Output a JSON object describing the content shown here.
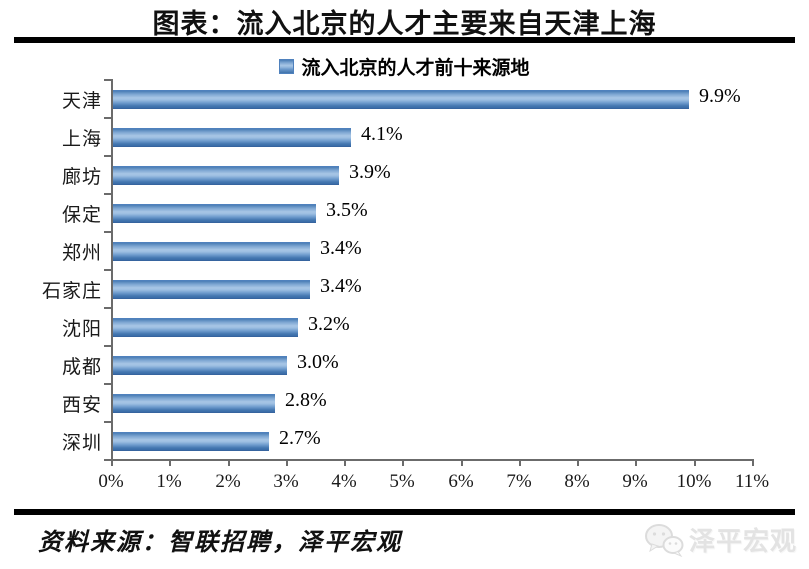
{
  "header": {
    "title": "图表：流入北京的人才主要来自天津上海"
  },
  "chart_data": {
    "type": "bar",
    "orientation": "horizontal",
    "title": "图表：流入北京的人才主要来自天津上海",
    "legend": "流入北京的人才前十来源地",
    "legend_position": "top",
    "categories": [
      "天津",
      "上海",
      "廊坊",
      "保定",
      "郑州",
      "石家庄",
      "沈阳",
      "成都",
      "西安",
      "深圳"
    ],
    "values": [
      9.9,
      4.1,
      3.9,
      3.5,
      3.4,
      3.4,
      3.2,
      3.0,
      2.8,
      2.7
    ],
    "value_labels": [
      "9.9%",
      "4.1%",
      "3.9%",
      "3.5%",
      "3.4%",
      "3.4%",
      "3.2%",
      "3.0%",
      "2.8%",
      "2.7%"
    ],
    "x_ticks": [
      "0%",
      "1%",
      "2%",
      "3%",
      "4%",
      "5%",
      "6%",
      "7%",
      "8%",
      "9%",
      "10%",
      "11%"
    ],
    "xlim": [
      0,
      11
    ],
    "grid": false,
    "bar_color": "#4f81bd"
  },
  "footer": {
    "source": "资料来源：智联招聘，泽平宏观",
    "watermark": "泽平宏观",
    "watermark_icon": "wechat-icon"
  }
}
